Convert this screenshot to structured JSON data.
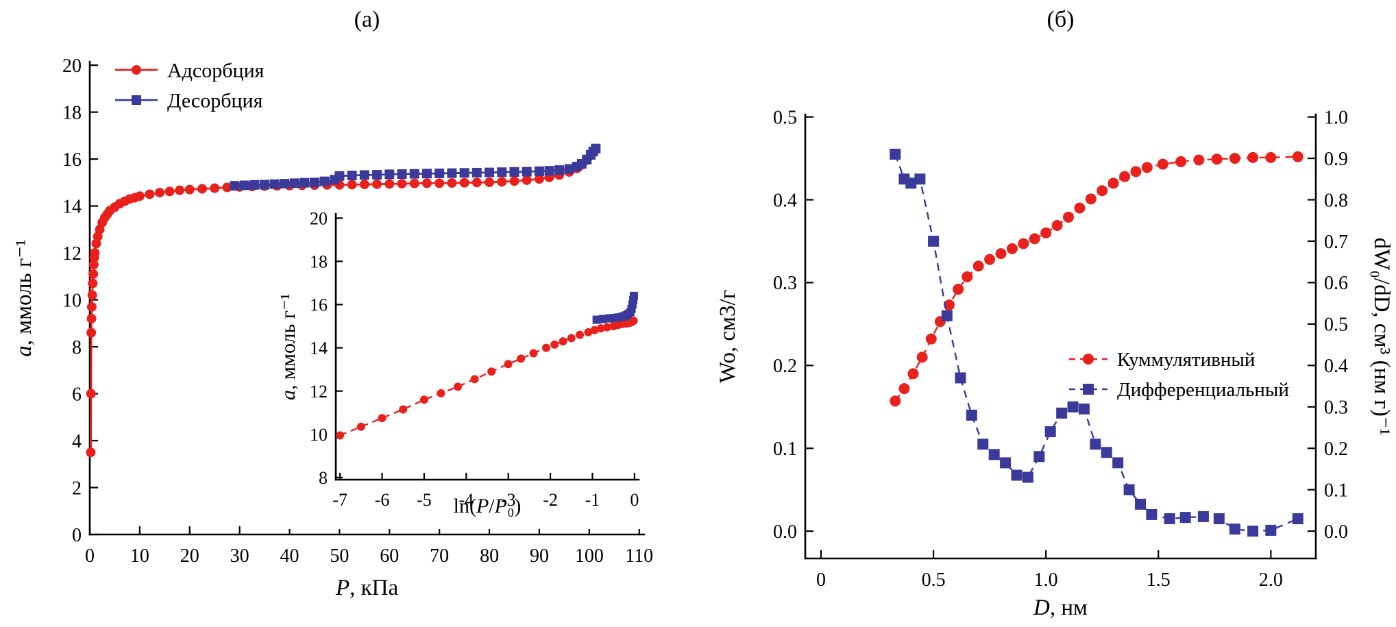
{
  "panel_a": {
    "label": "(а)"
  },
  "panel_b": {
    "label": "(б)"
  },
  "colors": {
    "adsorption_red": "#e8211d",
    "desorption_blue": "#3a3a9b"
  },
  "chart_data": [
    {
      "id": "isotherm",
      "type": "line",
      "panel": "(а)",
      "xlabel": "P, кПа",
      "xlabel_parts": [
        {
          "text": "P",
          "italic": true
        },
        {
          "text": ", кПа"
        }
      ],
      "ylabel": "a, ммоль г⁻¹",
      "ylabel_parts": [
        {
          "text": "a",
          "italic": true
        },
        {
          "text": ", ммоль г⁻¹"
        }
      ],
      "xlim": [
        0,
        111
      ],
      "ylim": [
        0,
        20.15
      ],
      "xticks": [
        0,
        10,
        20,
        30,
        40,
        50,
        60,
        70,
        80,
        90,
        100,
        110
      ],
      "xtick_labels": [
        "0",
        "10",
        "20",
        "30",
        "40",
        "50",
        "60",
        "70",
        "80",
        "90",
        "100",
        "110"
      ],
      "yticks_left": [
        0,
        2,
        4,
        6,
        8,
        10,
        12,
        14,
        16,
        18,
        20
      ],
      "ytick_labels_left": [
        "0",
        "2",
        "4",
        "6",
        "8",
        "10",
        "12",
        "14",
        "16",
        "18",
        "20"
      ],
      "legend_position": "top-left",
      "grid": false,
      "series": [
        {
          "name": "Адсорбция",
          "color": "#e8211d",
          "marker": "circle",
          "line": "solid",
          "points": [
            [
              0.2,
              3.5
            ],
            [
              0.25,
              6.0
            ],
            [
              0.3,
              8.6
            ],
            [
              0.35,
              9.2
            ],
            [
              0.4,
              9.7
            ],
            [
              0.5,
              10.2
            ],
            [
              0.6,
              10.7
            ],
            [
              0.7,
              11.1
            ],
            [
              0.8,
              11.5
            ],
            [
              0.9,
              11.8
            ],
            [
              1.0,
              12.0
            ],
            [
              1.3,
              12.4
            ],
            [
              1.6,
              12.7
            ],
            [
              2.0,
              13.0
            ],
            [
              2.5,
              13.3
            ],
            [
              3.0,
              13.5
            ],
            [
              3.5,
              13.65
            ],
            [
              4.0,
              13.8
            ],
            [
              5.0,
              13.95
            ],
            [
              6.0,
              14.1
            ],
            [
              7.0,
              14.2
            ],
            [
              8.0,
              14.3
            ],
            [
              9.0,
              14.35
            ],
            [
              10,
              14.42
            ],
            [
              12,
              14.5
            ],
            [
              14,
              14.57
            ],
            [
              16,
              14.62
            ],
            [
              18,
              14.67
            ],
            [
              20,
              14.7
            ],
            [
              22.5,
              14.73
            ],
            [
              25,
              14.76
            ],
            [
              27.5,
              14.79
            ],
            [
              30,
              14.81
            ],
            [
              32.5,
              14.83
            ],
            [
              35,
              14.85
            ],
            [
              37.5,
              14.86
            ],
            [
              40,
              14.87
            ],
            [
              42.5,
              14.88
            ],
            [
              45,
              14.89
            ],
            [
              47.5,
              14.9
            ],
            [
              50,
              14.9
            ],
            [
              52.5,
              14.91
            ],
            [
              55,
              14.92
            ],
            [
              57.5,
              14.93
            ],
            [
              60,
              14.94
            ],
            [
              62.5,
              14.95
            ],
            [
              65,
              14.96
            ],
            [
              67.5,
              14.97
            ],
            [
              70,
              14.97
            ],
            [
              72.5,
              14.98
            ],
            [
              75,
              14.99
            ],
            [
              77.5,
              15.0
            ],
            [
              80,
              15.01
            ],
            [
              82.5,
              15.03
            ],
            [
              85,
              15.06
            ],
            [
              87.5,
              15.1
            ],
            [
              90,
              15.15
            ],
            [
              92,
              15.22
            ],
            [
              94,
              15.32
            ],
            [
              96,
              15.45
            ],
            [
              97.5,
              15.6
            ],
            [
              98.5,
              15.75
            ],
            [
              99.5,
              15.95
            ],
            [
              100.2,
              16.15
            ],
            [
              100.8,
              16.3
            ],
            [
              101.2,
              16.4
            ]
          ]
        },
        {
          "name": "Десорбция",
          "color": "#3a3a9b",
          "marker": "square",
          "line": "solid",
          "points": [
            [
              29,
              14.86
            ],
            [
              31,
              14.88
            ],
            [
              33,
              14.9
            ],
            [
              35,
              14.91
            ],
            [
              37,
              14.93
            ],
            [
              39,
              14.95
            ],
            [
              41,
              14.97
            ],
            [
              43,
              14.99
            ],
            [
              45,
              15.0
            ],
            [
              47,
              15.05
            ],
            [
              49,
              15.12
            ],
            [
              50,
              15.28
            ],
            [
              52.5,
              15.3
            ],
            [
              55,
              15.32
            ],
            [
              57.5,
              15.33
            ],
            [
              60,
              15.35
            ],
            [
              62.5,
              15.36
            ],
            [
              65,
              15.37
            ],
            [
              67.5,
              15.38
            ],
            [
              70,
              15.39
            ],
            [
              72.5,
              15.4
            ],
            [
              75,
              15.41
            ],
            [
              77.5,
              15.42
            ],
            [
              80,
              15.43
            ],
            [
              82.5,
              15.44
            ],
            [
              85,
              15.45
            ],
            [
              87.5,
              15.46
            ],
            [
              90,
              15.48
            ],
            [
              92,
              15.5
            ],
            [
              94,
              15.53
            ],
            [
              96,
              15.58
            ],
            [
              97.5,
              15.68
            ],
            [
              98.5,
              15.8
            ],
            [
              99.5,
              15.98
            ],
            [
              100.3,
              16.18
            ],
            [
              100.8,
              16.32
            ],
            [
              101.3,
              16.45
            ]
          ]
        }
      ]
    },
    {
      "id": "isotherm_inset",
      "type": "line",
      "panel": "(а)",
      "xlabel": "ln(P/P₀)",
      "xlabel_parts": [
        {
          "text": "ln("
        },
        {
          "text": "P",
          "italic": true
        },
        {
          "text": "/"
        },
        {
          "text": "P",
          "italic": true
        },
        {
          "text": "₀)"
        }
      ],
      "ylabel": "a, ммоль г⁻¹",
      "ylabel_parts": [
        {
          "text": "a",
          "italic": true
        },
        {
          "text": ", ммоль г⁻¹"
        }
      ],
      "xlim": [
        -7.1,
        0.1
      ],
      "ylim": [
        7.9,
        20.2
      ],
      "xticks": [
        -7,
        -6,
        -5,
        -4,
        -3,
        -2,
        -1,
        0
      ],
      "xtick_labels": [
        "-7",
        "-6",
        "-5",
        "-4",
        "-3",
        "-2",
        "-1",
        "0"
      ],
      "yticks_left": [
        8,
        10,
        12,
        14,
        16,
        18,
        20
      ],
      "ytick_labels_left": [
        "8",
        "10",
        "12",
        "14",
        "16",
        "18",
        "20"
      ],
      "grid": false,
      "series": [
        {
          "name": "Адсорбция",
          "color": "#e8211d",
          "marker": "circle",
          "line": "dashed",
          "points": [
            [
              -7.0,
              9.95
            ],
            [
              -6.5,
              10.35
            ],
            [
              -6.0,
              10.75
            ],
            [
              -5.5,
              11.15
            ],
            [
              -5.0,
              11.6
            ],
            [
              -4.6,
              11.9
            ],
            [
              -4.2,
              12.2
            ],
            [
              -3.8,
              12.55
            ],
            [
              -3.4,
              12.9
            ],
            [
              -3.0,
              13.25
            ],
            [
              -2.7,
              13.5
            ],
            [
              -2.4,
              13.75
            ],
            [
              -2.1,
              14.0
            ],
            [
              -1.9,
              14.15
            ],
            [
              -1.7,
              14.3
            ],
            [
              -1.5,
              14.45
            ],
            [
              -1.3,
              14.6
            ],
            [
              -1.1,
              14.72
            ],
            [
              -0.95,
              14.82
            ],
            [
              -0.8,
              14.9
            ],
            [
              -0.65,
              14.95
            ],
            [
              -0.5,
              15.0
            ],
            [
              -0.4,
              15.05
            ],
            [
              -0.3,
              15.1
            ],
            [
              -0.2,
              15.12
            ],
            [
              -0.12,
              15.15
            ],
            [
              -0.06,
              15.2
            ],
            [
              -0.02,
              15.25
            ]
          ]
        },
        {
          "name": "Десорбция",
          "color": "#3a3a9b",
          "marker": "square",
          "line": "solid",
          "points": [
            [
              -0.9,
              15.3
            ],
            [
              -0.75,
              15.33
            ],
            [
              -0.6,
              15.36
            ],
            [
              -0.5,
              15.38
            ],
            [
              -0.4,
              15.4
            ],
            [
              -0.3,
              15.43
            ],
            [
              -0.25,
              15.46
            ],
            [
              -0.2,
              15.5
            ],
            [
              -0.15,
              15.56
            ],
            [
              -0.1,
              15.65
            ],
            [
              -0.07,
              15.8
            ],
            [
              -0.05,
              16.0
            ],
            [
              -0.03,
              16.2
            ],
            [
              -0.015,
              16.4
            ]
          ]
        }
      ]
    },
    {
      "id": "pore_distribution",
      "type": "line",
      "panel": "(б)",
      "xlabel": "D, нм",
      "xlabel_parts": [
        {
          "text": "D",
          "italic": true
        },
        {
          "text": ", нм"
        }
      ],
      "ylabel_left": "Wo, см3/г",
      "ylabel_left_parts": [
        {
          "text": "Wo, см3/г"
        }
      ],
      "ylabel_right": "dW₀/dD, см³ (нм г)⁻¹",
      "ylabel_right_parts": [
        {
          "text": "dW₀/dD, см³ (нм г)⁻¹"
        }
      ],
      "xlim": [
        -0.07,
        2.2
      ],
      "ylim_left": [
        -0.033,
        0.503
      ],
      "ylim_right": [
        -0.066,
        1.006
      ],
      "xticks": [
        0,
        0.5,
        1.0,
        1.5,
        2.0
      ],
      "xtick_labels": [
        "0",
        "0.5",
        "1.0",
        "1.5",
        "2.0"
      ],
      "yticks_left": [
        0,
        0.1,
        0.2,
        0.3,
        0.4,
        0.5
      ],
      "ytick_labels_left": [
        "0.0",
        "0.1",
        "0.2",
        "0.3",
        "0.4",
        "0.5"
      ],
      "yticks_right": [
        0,
        0.1,
        0.2,
        0.3,
        0.4,
        0.5,
        0.6,
        0.7,
        0.8,
        0.9,
        1.0
      ],
      "ytick_labels_right": [
        "0.0",
        "0.1",
        "0.2",
        "0.3",
        "0.4",
        "0.5",
        "0.6",
        "0.7",
        "0.8",
        "0.9",
        "1.0"
      ],
      "legend_position": "middle-right",
      "grid": false,
      "series": [
        {
          "name": "Куммулятивный",
          "axis": "left",
          "color": "#e8211d",
          "marker": "circle",
          "line": "dashed",
          "points": [
            [
              0.33,
              0.157
            ],
            [
              0.37,
              0.172
            ],
            [
              0.41,
              0.19
            ],
            [
              0.45,
              0.21
            ],
            [
              0.49,
              0.232
            ],
            [
              0.53,
              0.253
            ],
            [
              0.57,
              0.273
            ],
            [
              0.61,
              0.292
            ],
            [
              0.65,
              0.307
            ],
            [
              0.7,
              0.32
            ],
            [
              0.75,
              0.328
            ],
            [
              0.8,
              0.335
            ],
            [
              0.85,
              0.341
            ],
            [
              0.9,
              0.347
            ],
            [
              0.95,
              0.353
            ],
            [
              1.0,
              0.36
            ],
            [
              1.05,
              0.369
            ],
            [
              1.1,
              0.379
            ],
            [
              1.15,
              0.39
            ],
            [
              1.2,
              0.401
            ],
            [
              1.25,
              0.411
            ],
            [
              1.3,
              0.42
            ],
            [
              1.35,
              0.428
            ],
            [
              1.4,
              0.434
            ],
            [
              1.45,
              0.439
            ],
            [
              1.52,
              0.443
            ],
            [
              1.6,
              0.446
            ],
            [
              1.68,
              0.448
            ],
            [
              1.76,
              0.449
            ],
            [
              1.84,
              0.45
            ],
            [
              1.92,
              0.451
            ],
            [
              2.0,
              0.451
            ],
            [
              2.12,
              0.452
            ]
          ]
        },
        {
          "name": "Дифференциальный",
          "axis": "right",
          "color": "#3a3a9b",
          "marker": "square",
          "line": "dashed",
          "points": [
            [
              0.33,
              0.91
            ],
            [
              0.37,
              0.85
            ],
            [
              0.4,
              0.84
            ],
            [
              0.44,
              0.85
            ],
            [
              0.5,
              0.7
            ],
            [
              0.56,
              0.52
            ],
            [
              0.62,
              0.37
            ],
            [
              0.67,
              0.28
            ],
            [
              0.72,
              0.21
            ],
            [
              0.77,
              0.185
            ],
            [
              0.82,
              0.165
            ],
            [
              0.87,
              0.135
            ],
            [
              0.92,
              0.13
            ],
            [
              0.97,
              0.18
            ],
            [
              1.02,
              0.24
            ],
            [
              1.07,
              0.285
            ],
            [
              1.12,
              0.3
            ],
            [
              1.17,
              0.295
            ],
            [
              1.22,
              0.21
            ],
            [
              1.27,
              0.19
            ],
            [
              1.32,
              0.165
            ],
            [
              1.37,
              0.1
            ],
            [
              1.42,
              0.065
            ],
            [
              1.47,
              0.04
            ],
            [
              1.55,
              0.03
            ],
            [
              1.62,
              0.033
            ],
            [
              1.7,
              0.035
            ],
            [
              1.77,
              0.03
            ],
            [
              1.84,
              0.005
            ],
            [
              1.92,
              0.0
            ],
            [
              2.0,
              0.002
            ],
            [
              2.12,
              0.03
            ]
          ]
        }
      ]
    }
  ]
}
